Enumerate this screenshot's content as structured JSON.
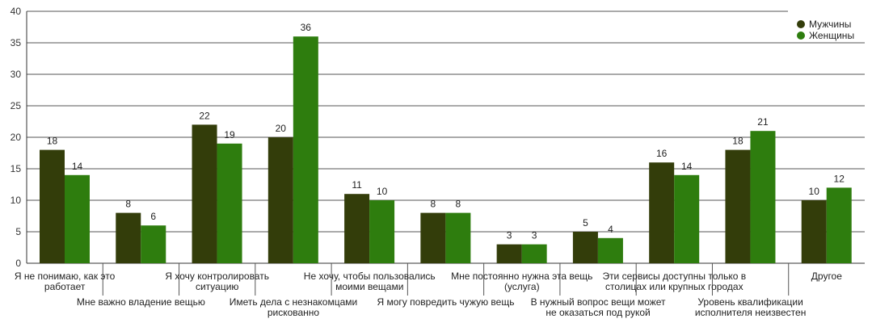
{
  "chart_data": {
    "type": "bar",
    "ylim": [
      0,
      40
    ],
    "yticks": [
      0,
      5,
      10,
      15,
      20,
      25,
      30,
      35,
      40
    ],
    "grid": true,
    "legend_position": "top-right",
    "categories": [
      [
        "Я не понимаю, как это",
        "работает"
      ],
      [
        "Мне важно владение вещью"
      ],
      [
        "Я хочу контролировать",
        "ситуацию"
      ],
      [
        "Иметь дела с незнакомцами",
        "рискованно"
      ],
      [
        "Не хочу, чтобы пользовались",
        "моими вещами"
      ],
      [
        "Я могу повредить чужую вещь"
      ],
      [
        "Мне постоянно нужна эта вещь",
        "(услуга)"
      ],
      [
        "В нужный вопрос вещи может",
        "не оказаться под рукой"
      ],
      [
        "Эти сервисы доступны только в",
        "столицах или крупных городах"
      ],
      [
        "Уровень квалификации",
        "исполнителя неизвестен"
      ],
      [
        "Другое"
      ]
    ],
    "series": [
      {
        "name": "Мужчины",
        "color": "#333d0a",
        "values": [
          18,
          8,
          22,
          20,
          11,
          8,
          3,
          5,
          16,
          18,
          10
        ]
      },
      {
        "name": "Женщины",
        "color": "#2e7d0e",
        "values": [
          14,
          6,
          19,
          36,
          10,
          8,
          3,
          4,
          14,
          21,
          12
        ]
      }
    ]
  }
}
